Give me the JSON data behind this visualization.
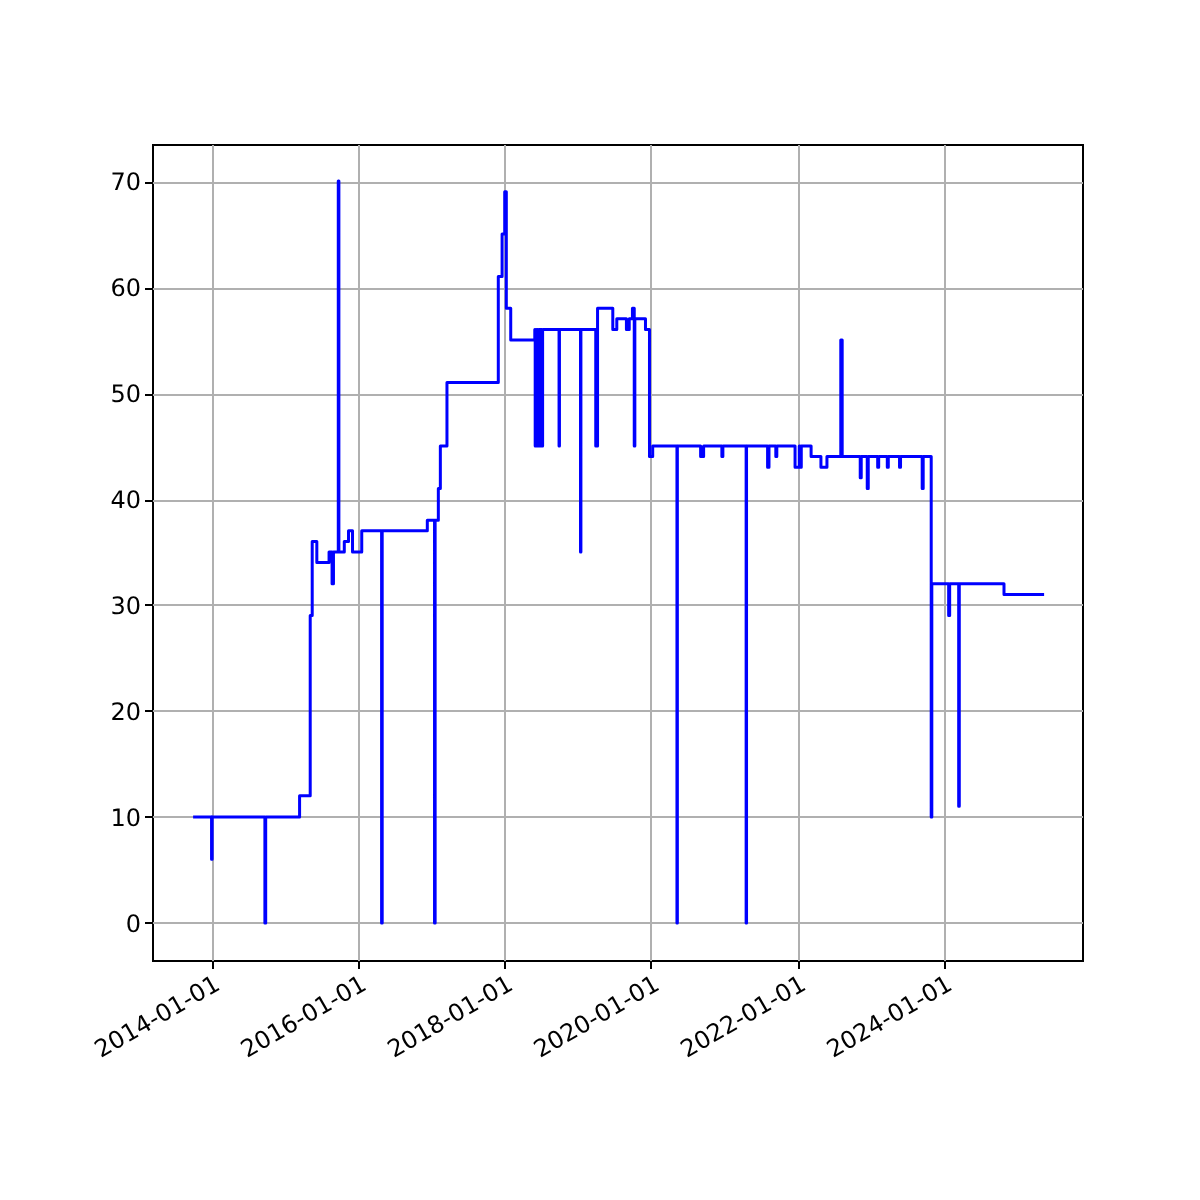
{
  "chart_data": {
    "type": "step",
    "xlim": [
      "2013-03-10",
      "2025-11-20"
    ],
    "ylim": [
      -3.5,
      73.5
    ],
    "xticks": [
      "2014-01-01",
      "2016-01-01",
      "2018-01-01",
      "2020-01-01",
      "2022-01-01",
      "2024-01-01"
    ],
    "yticks": [
      0,
      10,
      20,
      30,
      40,
      50,
      60,
      70
    ],
    "grid": true,
    "series": [
      {
        "color": "#0000ff",
        "x": [
          "2013-10-01",
          "2013-12-28",
          "2014-01-01",
          "2014-01-04",
          "2014-09-20",
          "2014-09-24",
          "2014-09-28",
          "2015-03-15",
          "2015-03-16",
          "2015-05-05",
          "2015-05-08",
          "2015-05-18",
          "2015-06-08",
          "2015-06-10",
          "2015-08-05",
          "2015-08-10",
          "2015-08-25",
          "2015-09-01",
          "2015-09-25",
          "2015-09-28",
          "2015-10-25",
          "2015-11-15",
          "2015-12-05",
          "2016-01-20",
          "2016-04-25",
          "2016-04-28",
          "2016-05-01",
          "2016-12-10",
          "2016-12-12",
          "2017-01-15",
          "2017-01-17",
          "2017-01-20",
          "2017-02-05",
          "2017-02-15",
          "2017-03-20",
          "2017-11-30",
          "2017-12-01",
          "2017-12-20",
          "2018-01-02",
          "2018-01-10",
          "2018-02-01",
          "2018-05-30",
          "2018-06-01",
          "2018-06-03",
          "2018-06-10",
          "2018-06-15",
          "2018-06-20",
          "2018-06-25",
          "2018-07-01",
          "2018-07-05",
          "2018-07-10",
          "2018-09-28",
          "2018-09-30",
          "2018-10-02",
          "2019-01-13",
          "2019-01-15",
          "2019-01-17",
          "2019-03-30",
          "2019-04-01",
          "2019-04-10",
          "2019-06-25",
          "2019-07-15",
          "2019-09-01",
          "2019-09-15",
          "2019-10-01",
          "2019-10-10",
          "2019-10-13",
          "2019-11-20",
          "2019-12-05",
          "2019-12-25",
          "2020-01-10",
          "2020-05-08",
          "2020-05-10",
          "2020-05-12",
          "2020-09-03",
          "2020-09-05",
          "2020-09-20",
          "2020-12-18",
          "2020-12-20",
          "2020-12-25",
          "2021-04-18",
          "2021-04-20",
          "2021-04-22",
          "2021-08-03",
          "2021-08-05",
          "2021-08-12",
          "2021-09-13",
          "2021-09-15",
          "2021-09-20",
          "2021-12-18",
          "2021-12-20",
          "2022-01-10",
          "2022-01-15",
          "2022-01-20",
          "2022-03-10",
          "2022-04-25",
          "2022-04-28",
          "2022-05-28",
          "2022-08-05",
          "2022-08-12",
          "2022-11-08",
          "2022-11-10",
          "2022-11-15",
          "2022-12-13",
          "2022-12-15",
          "2022-12-20",
          "2023-02-03",
          "2023-02-05",
          "2023-02-10",
          "2023-03-23",
          "2023-03-25",
          "2023-03-30",
          "2023-05-23",
          "2023-05-25",
          "2023-05-30",
          "2023-09-13",
          "2023-09-15",
          "2023-09-20",
          "2023-10-05",
          "2023-10-28",
          "2023-10-30",
          "2023-11-02",
          "2024-01-23",
          "2024-01-25",
          "2024-01-30",
          "2024-03-13",
          "2024-03-15",
          "2024-03-18",
          "2024-10-25",
          "2024-10-27",
          "2025-05-15"
        ],
        "values": [
          10,
          10,
          6,
          10,
          10,
          0,
          10,
          10,
          12,
          12,
          29,
          36,
          36,
          34,
          34,
          35,
          32,
          35,
          70,
          35,
          36,
          37,
          35,
          37,
          37,
          0,
          37,
          37,
          38,
          38,
          0,
          38,
          41,
          45,
          51,
          51,
          61,
          65,
          69,
          58,
          55,
          55,
          56,
          45,
          56,
          45,
          56,
          45,
          56,
          45,
          56,
          56,
          45,
          56,
          56,
          35,
          56,
          56,
          45,
          58,
          56,
          57,
          56,
          57,
          58,
          45,
          57,
          57,
          56,
          44,
          45,
          45,
          0,
          45,
          45,
          44,
          45,
          45,
          44,
          45,
          45,
          0,
          45,
          45,
          43,
          45,
          45,
          44,
          45,
          45,
          43,
          45,
          43,
          45,
          44,
          44,
          43,
          44,
          55,
          44,
          44,
          42,
          44,
          44,
          41,
          44,
          44,
          43,
          44,
          44,
          43,
          44,
          44,
          43,
          44,
          44,
          41,
          44,
          44,
          44,
          10,
          32,
          32,
          29,
          32,
          32,
          11,
          32,
          32,
          31,
          31
        ]
      }
    ]
  }
}
